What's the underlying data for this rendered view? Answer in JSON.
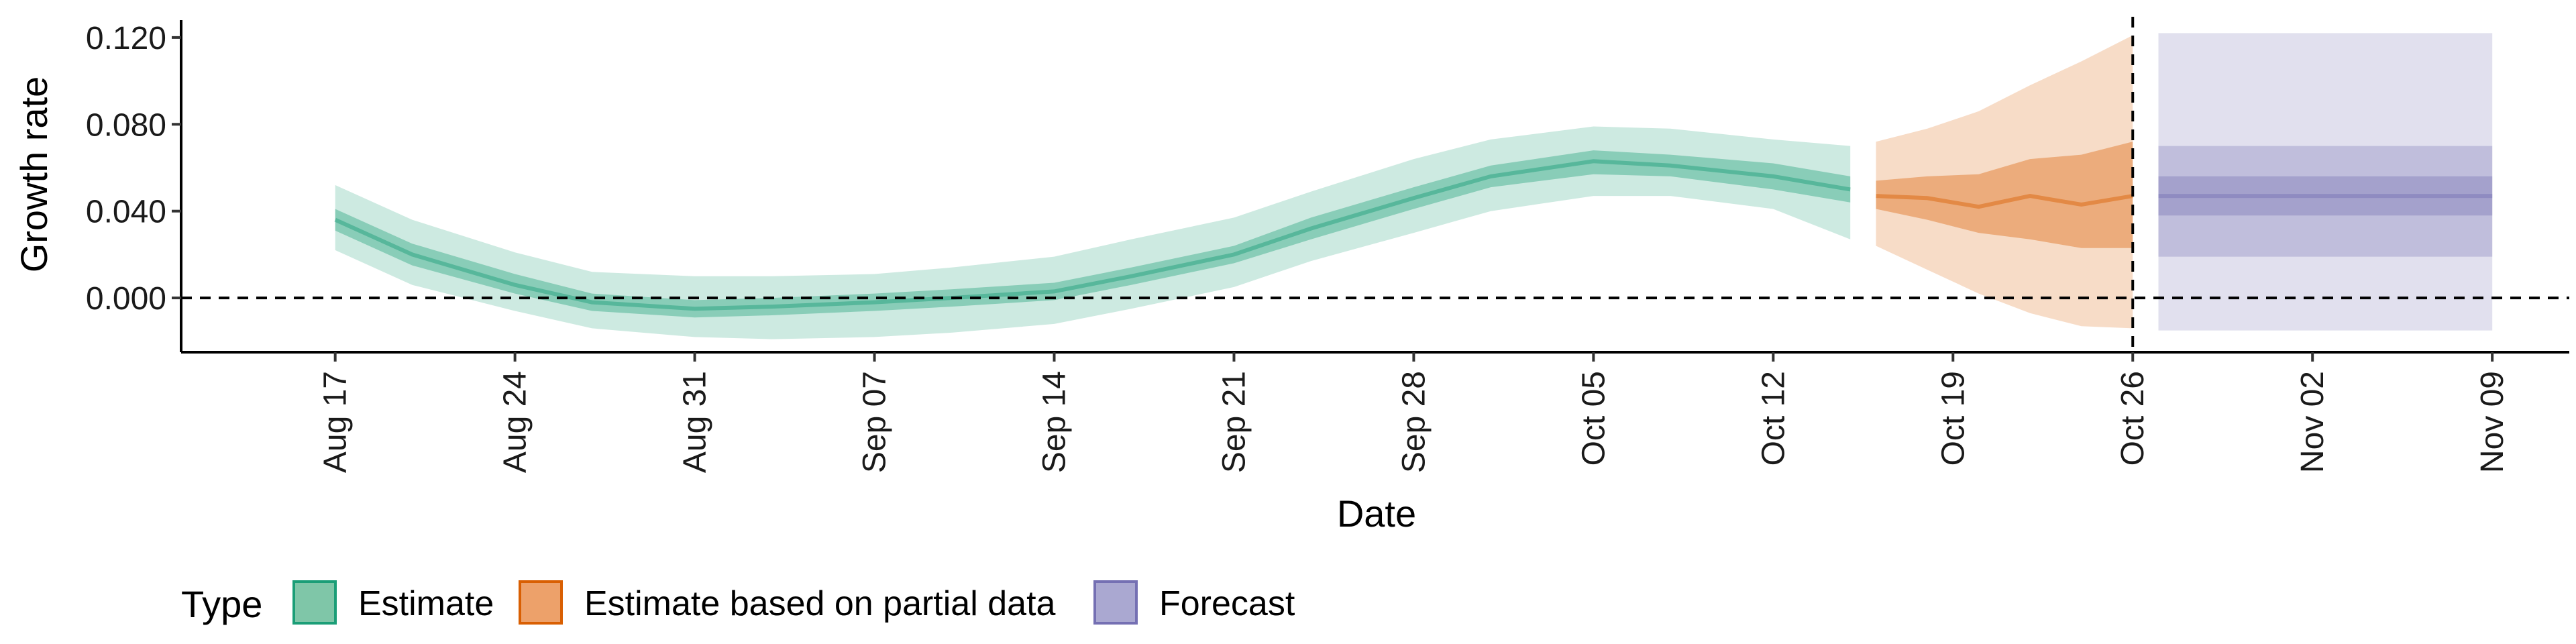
{
  "chart_data": {
    "type": "area",
    "title": "",
    "xlabel": "Date",
    "ylabel": "Growth rate",
    "x_range": [
      "2020-08-11",
      "2020-11-12"
    ],
    "ylim": [
      -0.025,
      0.128
    ],
    "x_ticks": [
      {
        "date": "2020-08-17",
        "label": "Aug 17"
      },
      {
        "date": "2020-08-24",
        "label": "Aug 24"
      },
      {
        "date": "2020-08-31",
        "label": "Aug 31"
      },
      {
        "date": "2020-09-07",
        "label": "Sep 07"
      },
      {
        "date": "2020-09-14",
        "label": "Sep 14"
      },
      {
        "date": "2020-09-21",
        "label": "Sep 21"
      },
      {
        "date": "2020-09-28",
        "label": "Sep 28"
      },
      {
        "date": "2020-10-05",
        "label": "Oct 05"
      },
      {
        "date": "2020-10-12",
        "label": "Oct 12"
      },
      {
        "date": "2020-10-19",
        "label": "Oct 19"
      },
      {
        "date": "2020-10-26",
        "label": "Oct 26"
      },
      {
        "date": "2020-11-02",
        "label": "Nov 02"
      },
      {
        "date": "2020-11-09",
        "label": "Nov 09"
      }
    ],
    "y_ticks": [
      {
        "value": 0.0,
        "label": "0.000"
      },
      {
        "value": 0.04,
        "label": "0.040"
      },
      {
        "value": 0.08,
        "label": "0.080"
      },
      {
        "value": 0.12,
        "label": "0.120"
      }
    ],
    "reference_lines": {
      "horizontal_y": 0.0,
      "vertical_date": "2020-10-26"
    },
    "legend": {
      "title": "Type",
      "placement": "bottom",
      "entries": [
        {
          "label": "Estimate",
          "fill": "#7fc6a8",
          "stroke": "#1b9e77"
        },
        {
          "label": "Estimate based on partial data",
          "fill": "#eda16a",
          "stroke": "#d95f02"
        },
        {
          "label": "Forecast",
          "fill": "#aaa8d1",
          "stroke": "#7570b3"
        }
      ]
    },
    "series": [
      {
        "type_label": "Estimate",
        "color": "#1b9e77",
        "x": [
          "2020-08-17",
          "2020-08-20",
          "2020-08-24",
          "2020-08-27",
          "2020-08-31",
          "2020-09-03",
          "2020-09-07",
          "2020-09-10",
          "2020-09-14",
          "2020-09-17",
          "2020-09-21",
          "2020-09-24",
          "2020-09-28",
          "2020-10-01",
          "2020-10-05",
          "2020-10-08",
          "2020-10-12",
          "2020-10-15"
        ],
        "median": [
          0.036,
          0.02,
          0.006,
          -0.002,
          -0.005,
          -0.004,
          -0.002,
          0.0,
          0.003,
          0.01,
          0.02,
          0.032,
          0.046,
          0.056,
          0.063,
          0.061,
          0.056,
          0.05
        ],
        "lower_50": [
          0.031,
          0.015,
          0.002,
          -0.006,
          -0.009,
          -0.008,
          -0.006,
          -0.004,
          -0.001,
          0.006,
          0.016,
          0.027,
          0.041,
          0.051,
          0.057,
          0.056,
          0.05,
          0.044
        ],
        "upper_50": [
          0.041,
          0.025,
          0.011,
          0.002,
          -0.001,
          0.0,
          0.002,
          0.004,
          0.007,
          0.014,
          0.024,
          0.037,
          0.051,
          0.061,
          0.068,
          0.066,
          0.062,
          0.056
        ],
        "lower_90": [
          0.022,
          0.006,
          -0.006,
          -0.014,
          -0.018,
          -0.019,
          -0.018,
          -0.016,
          -0.012,
          -0.005,
          0.005,
          0.017,
          0.03,
          0.04,
          0.047,
          0.047,
          0.041,
          0.027
        ],
        "upper_90": [
          0.052,
          0.036,
          0.021,
          0.012,
          0.01,
          0.01,
          0.011,
          0.014,
          0.019,
          0.027,
          0.037,
          0.049,
          0.064,
          0.073,
          0.079,
          0.078,
          0.073,
          0.07
        ]
      },
      {
        "type_label": "Estimate based on partial data",
        "color": "#d95f02",
        "x": [
          "2020-10-16",
          "2020-10-18",
          "2020-10-20",
          "2020-10-22",
          "2020-10-24",
          "2020-10-26"
        ],
        "median": [
          0.047,
          0.046,
          0.042,
          0.047,
          0.043,
          0.047
        ],
        "lower_50": [
          0.041,
          0.036,
          0.03,
          0.027,
          0.023,
          0.023
        ],
        "upper_50": [
          0.054,
          0.056,
          0.057,
          0.064,
          0.066,
          0.072
        ],
        "lower_90": [
          0.024,
          0.013,
          0.002,
          -0.007,
          -0.013,
          -0.014
        ],
        "upper_90": [
          0.072,
          0.078,
          0.086,
          0.098,
          0.109,
          0.121
        ]
      },
      {
        "type_label": "Forecast",
        "color": "#7570b3",
        "x": [
          "2020-10-27",
          "2020-11-09"
        ],
        "median": [
          0.047,
          0.047
        ],
        "lower_50": [
          0.038,
          0.038
        ],
        "upper_50": [
          0.056,
          0.056
        ],
        "lower_80": [
          0.019,
          0.019
        ],
        "upper_80": [
          0.07,
          0.07
        ],
        "lower_90": [
          -0.015,
          -0.015
        ],
        "upper_90": [
          0.122,
          0.122
        ]
      }
    ]
  }
}
